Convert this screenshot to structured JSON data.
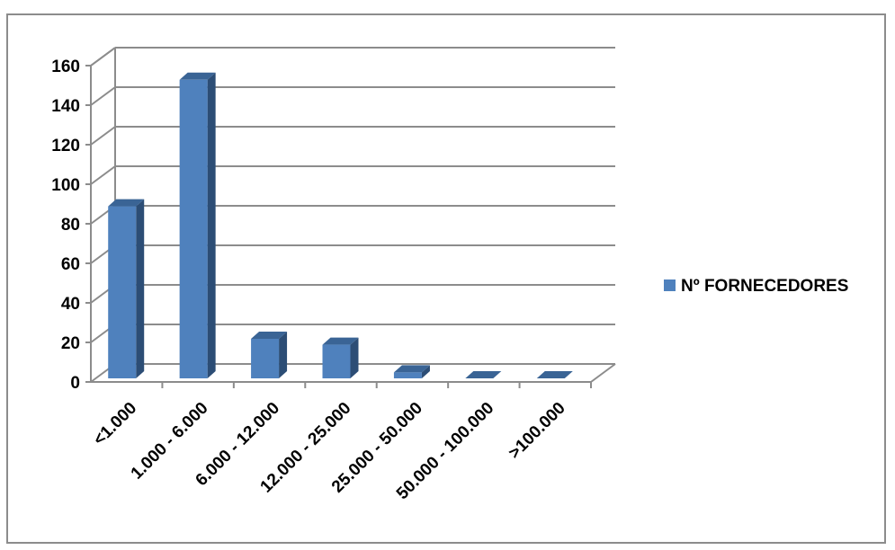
{
  "chart_data": {
    "type": "bar",
    "categories": [
      "<1.000",
      "1.000 - 6.000",
      "6.000 - 12.000",
      "12.000 - 25.000",
      "25.000 - 50.000",
      "50.000 - 100.000",
      ">100.000"
    ],
    "series": [
      {
        "name": "Nº FORNECEDORES",
        "values": [
          87,
          151,
          20,
          17,
          3,
          0,
          0
        ],
        "color": "#4f81bd"
      }
    ],
    "ylim": [
      0,
      160
    ],
    "yticks": [
      0,
      20,
      40,
      60,
      80,
      100,
      120,
      140,
      160
    ],
    "grid": true,
    "legend": "right",
    "style": "3d-column"
  }
}
